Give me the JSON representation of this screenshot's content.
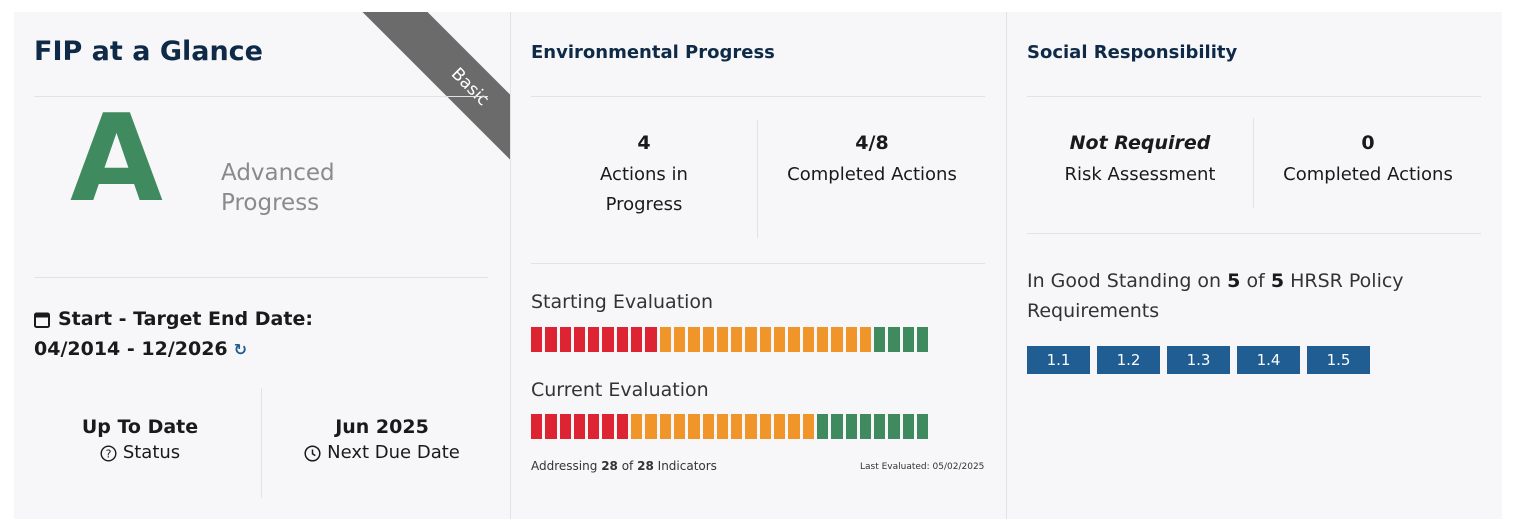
{
  "glance": {
    "title": "FIP at a Glance",
    "ribbon": "Basic",
    "grade_letter": "A",
    "grade_text": "Advanced Progress",
    "date_label": "Start - Target End Date:",
    "date_value": "04/2014 - 12/2026",
    "status_value": "Up To Date",
    "status_label": "Status",
    "due_value": "Jun 2025",
    "due_label": "Next Due Date"
  },
  "environmental": {
    "title": "Environmental Progress",
    "actions_in_progress_value": "4",
    "actions_in_progress_label": "Actions in Progress",
    "completed_value": "4/8",
    "completed_label": "Completed Actions",
    "starting_label": "Starting Evaluation",
    "current_label": "Current Evaluation",
    "starting_counts": {
      "red": 9,
      "orange": 15,
      "green": 4
    },
    "current_counts": {
      "red": 7,
      "orange": 13,
      "green": 8
    },
    "footer_prefix": "Addressing",
    "footer_addressed": "28",
    "footer_of": "of",
    "footer_total": "28",
    "footer_suffix": "Indicators",
    "last_evaluated": "Last Evaluated: 05/02/2025"
  },
  "social": {
    "title": "Social Responsibility",
    "risk_value": "Not Required",
    "risk_label": "Risk Assessment",
    "completed_value": "0",
    "completed_label": "Completed Actions",
    "standing_prefix": "In Good Standing on",
    "standing_count": "5",
    "standing_of": "of",
    "standing_total": "5",
    "standing_suffix": "HRSR Policy Requirements",
    "policies": [
      "1.1",
      "1.2",
      "1.3",
      "1.4",
      "1.5"
    ]
  },
  "colors": {
    "red": "#dc2433",
    "orange": "#f0952a",
    "green": "#3f8a5f",
    "navy": "#0e2a47",
    "blue": "#1f5d92"
  }
}
